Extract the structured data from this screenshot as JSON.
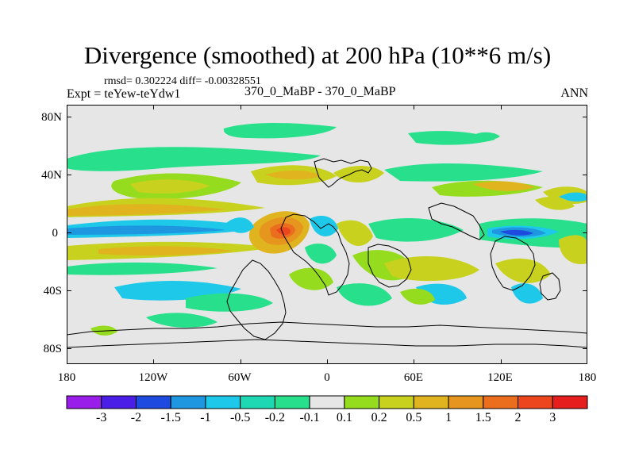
{
  "title": "Divergence (smoothed) at 200 hPa (10**6 m/s)",
  "stats_line": "rmsd= 0.302224  diff= -0.00328551",
  "expt_line": "Expt = teYew-teYdw1",
  "cases_line": "370_0_MaBP - 370_0_MaBP",
  "season": "ANN",
  "map": {
    "background": "#e6e6e6",
    "lat_labels": [
      "80N",
      "40N",
      "0",
      "40S",
      "80S"
    ],
    "lon_labels": [
      "180",
      "120W",
      "60W",
      "0",
      "60E",
      "120E",
      "180"
    ]
  },
  "colorbar": {
    "colors": [
      "#9a1eea",
      "#4a1ee6",
      "#1e4ae0",
      "#1e96e0",
      "#1ec8e8",
      "#1ed8b4",
      "#28e08c",
      "#e6e6e6",
      "#96dc1e",
      "#c8d21e",
      "#e0b41e",
      "#e6961e",
      "#eb6e1e",
      "#eb461e",
      "#e61e1e"
    ],
    "labels": [
      "-3",
      "-2",
      "-1.5",
      "-1",
      "-0.5",
      "-0.2",
      "-0.1",
      "0.1",
      "0.2",
      "0.5",
      "1",
      "1.5",
      "2",
      "3"
    ]
  }
}
